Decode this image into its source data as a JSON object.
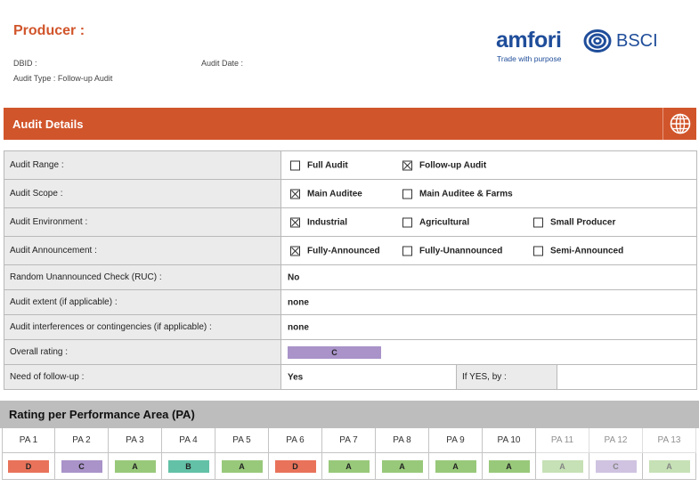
{
  "header": {
    "title": "Producer :",
    "dbid_label": "DBID :",
    "audit_date_label": "Audit Date :",
    "audit_type": "Audit Type : Follow-up Audit"
  },
  "logo": {
    "word": "amfori",
    "brand": "BSCI",
    "tagline": "Trade with purpose"
  },
  "section": {
    "title": "Audit Details",
    "globe_icon": "globe-icon"
  },
  "details": {
    "audit_range": {
      "label": "Audit Range :",
      "options": [
        {
          "text": "Full Audit",
          "checked": false
        },
        {
          "text": "Follow-up Audit",
          "checked": true
        }
      ]
    },
    "audit_scope": {
      "label": "Audit Scope :",
      "options": [
        {
          "text": "Main Auditee",
          "checked": true
        },
        {
          "text": "Main Auditee & Farms",
          "checked": false
        }
      ]
    },
    "audit_environment": {
      "label": "Audit Environment :",
      "options": [
        {
          "text": "Industrial",
          "checked": true
        },
        {
          "text": "Agricultural",
          "checked": false
        },
        {
          "text": "Small Producer",
          "checked": false
        }
      ]
    },
    "audit_announcement": {
      "label": "Audit Announcement :",
      "options": [
        {
          "text": "Fully-Announced",
          "checked": true
        },
        {
          "text": "Fully-Unannounced",
          "checked": false
        },
        {
          "text": "Semi-Announced",
          "checked": false
        }
      ]
    },
    "ruc": {
      "label": "Random Unannounced Check (RUC) :",
      "value": "No"
    },
    "audit_extent": {
      "label": "Audit extent (if applicable) :",
      "value": "none"
    },
    "interferences": {
      "label": "Audit interferences or contingencies (if applicable) :",
      "value": "none"
    },
    "overall_rating": {
      "label": "Overall rating :",
      "value": "C",
      "color": "#a993c9"
    },
    "follow_up": {
      "label": "Need of follow-up :",
      "value": "Yes",
      "if_yes_label": "If YES, by :"
    }
  },
  "pa": {
    "title": "Rating per Performance Area (PA)",
    "areas": [
      {
        "name": "PA 1",
        "rating": "D",
        "color": "#e8735a"
      },
      {
        "name": "PA 2",
        "rating": "C",
        "color": "#a993c9"
      },
      {
        "name": "PA 3",
        "rating": "A",
        "color": "#98c97a"
      },
      {
        "name": "PA 4",
        "rating": "B",
        "color": "#62c1a6"
      },
      {
        "name": "PA 5",
        "rating": "A",
        "color": "#98c97a"
      },
      {
        "name": "PA 6",
        "rating": "D",
        "color": "#e8735a"
      },
      {
        "name": "PA 7",
        "rating": "A",
        "color": "#98c97a"
      },
      {
        "name": "PA 8",
        "rating": "A",
        "color": "#98c97a"
      },
      {
        "name": "PA 9",
        "rating": "A",
        "color": "#98c97a"
      },
      {
        "name": "PA 10",
        "rating": "A",
        "color": "#98c97a"
      },
      {
        "name": "PA 11",
        "rating": "A",
        "color": "#98c97a"
      },
      {
        "name": "PA 12",
        "rating": "C",
        "color": "#a993c9"
      },
      {
        "name": "PA 13",
        "rating": "A",
        "color": "#98c97a"
      }
    ]
  }
}
